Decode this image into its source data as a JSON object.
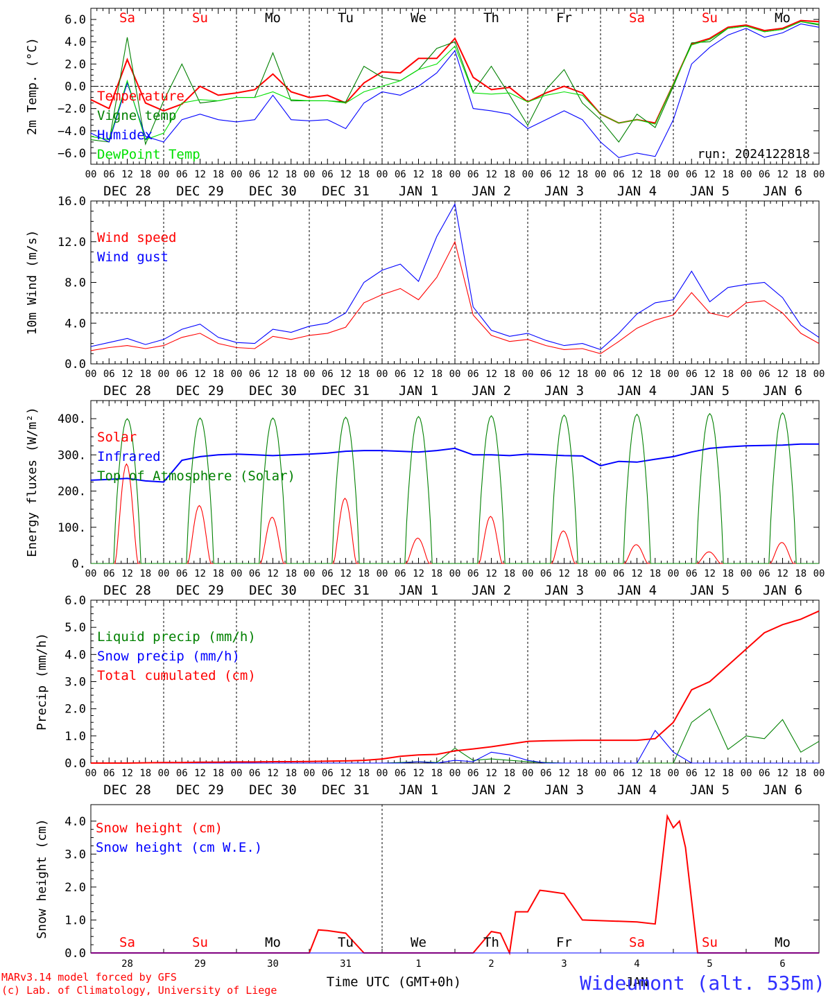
{
  "footer": {
    "model": "MARv3.14 model forced by GFS",
    "lab": "(c) Lab. of Climatology, University of Liege",
    "station": "Wideumont (alt. 535m)",
    "xlabel": "Time UTC (GMT+0h)"
  },
  "run_label": "run: 2024122818",
  "day_names": [
    "Sa",
    "Su",
    "Mo",
    "Tu",
    "We",
    "Th",
    "Fr",
    "Sa",
    "Su",
    "Mo"
  ],
  "weekend_flags": [
    true,
    true,
    false,
    false,
    false,
    false,
    false,
    true,
    true,
    false
  ],
  "date_labels": [
    "DEC 28",
    "DEC 29",
    "DEC 30",
    "DEC 31",
    "JAN  1",
    "JAN  2",
    "JAN  3",
    "JAN  4",
    "JAN  5",
    "JAN  6"
  ],
  "hour_ticks": [
    "00",
    "06",
    "12",
    "18"
  ],
  "last_tick": "00",
  "bottom_day_numbers": [
    "28",
    "29",
    "30",
    "31",
    "1",
    "2",
    "3",
    "4",
    "5",
    "6"
  ],
  "bottom_month": "JAN",
  "colors": {
    "red": "#ff0000",
    "green": "#008000",
    "blue": "#0000ff",
    "lightgreen": "#00e000",
    "station": "#3030ff"
  },
  "chart_data": [
    {
      "type": "line",
      "ylabel": "2m Temp. (°C)",
      "ylim": [
        -7,
        7
      ],
      "yticks": [
        "6.0",
        "4.0",
        "2.0",
        "0.0",
        "−2.0",
        "−4.0",
        "−6.0"
      ],
      "ytick_values": [
        6,
        4,
        2,
        0,
        -2,
        -4,
        -6
      ],
      "ref_line": 0,
      "x_hours": [
        0,
        6,
        12,
        18,
        24,
        30,
        36,
        42,
        48,
        54,
        60,
        66,
        72,
        78,
        84,
        90,
        96,
        102,
        108,
        114,
        120,
        126,
        132,
        138,
        144,
        150,
        156,
        162,
        168,
        174,
        180,
        186,
        192,
        198,
        204,
        210,
        216,
        222,
        228,
        234,
        240
      ],
      "series": [
        {
          "name": "Temperature",
          "color": "#ff0000",
          "values": [
            -1.2,
            -2.0,
            2.4,
            -1.5,
            -2.2,
            -1.6,
            0.0,
            -0.8,
            -0.6,
            -0.3,
            1.1,
            -0.5,
            -1.0,
            -0.8,
            -1.5,
            0.3,
            1.3,
            1.2,
            2.5,
            2.5,
            4.3,
            0.8,
            -0.3,
            -0.1,
            -1.4,
            -0.6,
            0.0,
            -0.6,
            -2.5,
            -3.3,
            -3.0,
            -3.3,
            0.2,
            3.8,
            4.3,
            5.3,
            5.5,
            5.0,
            5.2,
            5.9,
            5.8
          ]
        },
        {
          "name": "Vigne temp",
          "color": "#008000",
          "values": [
            -4.8,
            -5.0,
            4.4,
            -5.2,
            -1.3,
            2.0,
            -1.5,
            -1.3,
            -1.0,
            -1.0,
            3.0,
            -1.3,
            -1.3,
            -1.3,
            -1.4,
            1.8,
            0.8,
            0.5,
            1.5,
            3.4,
            4.0,
            -0.5,
            1.8,
            -0.8,
            -3.5,
            -0.3,
            1.5,
            -1.5,
            -3.0,
            -5.0,
            -2.5,
            -3.7,
            0.0,
            3.9,
            4.0,
            5.2,
            5.4,
            4.9,
            5.1,
            5.8,
            5.5
          ]
        },
        {
          "name": "Humidex",
          "color": "#0000ff",
          "values": [
            -4.2,
            -5.0,
            0.3,
            -4.5,
            -5.0,
            -3.0,
            -2.5,
            -3.0,
            -3.2,
            -3.0,
            -0.8,
            -3.0,
            -3.1,
            -3.0,
            -3.8,
            -1.5,
            -0.5,
            -0.8,
            0.0,
            1.2,
            3.2,
            -2.0,
            -2.2,
            -2.5,
            -3.8,
            -3.0,
            -2.2,
            -3.0,
            -5.0,
            -6.4,
            -6.0,
            -6.3,
            -3.0,
            2.0,
            3.5,
            4.6,
            5.2,
            4.4,
            4.8,
            5.6,
            5.3
          ]
        },
        {
          "name": "DewPoint Temp",
          "color": "#00e000",
          "values": [
            -4.5,
            -4.8,
            0.5,
            -4.8,
            -4.2,
            -1.5,
            -1.2,
            -1.3,
            -1.0,
            -1.0,
            -0.5,
            -1.2,
            -1.3,
            -1.3,
            -1.5,
            -0.5,
            0.0,
            0.5,
            1.5,
            2.0,
            3.6,
            -0.6,
            -0.7,
            -0.6,
            -1.4,
            -0.8,
            -0.5,
            -0.8,
            -2.5,
            -3.3,
            -3.0,
            -3.4,
            0.2,
            3.7,
            4.2,
            5.2,
            5.4,
            4.9,
            5.1,
            5.8,
            5.6
          ]
        }
      ]
    },
    {
      "type": "line",
      "ylabel": "10m Wind (m/s)",
      "ylim": [
        0,
        16
      ],
      "yticks": [
        "16.0",
        "12.0",
        "8.0",
        "4.0",
        "0.0"
      ],
      "ytick_values": [
        16,
        12,
        8,
        4,
        0
      ],
      "ref_line": 5,
      "x_hours": [
        0,
        6,
        12,
        18,
        24,
        30,
        36,
        42,
        48,
        54,
        60,
        66,
        72,
        78,
        84,
        90,
        96,
        102,
        108,
        114,
        120,
        126,
        132,
        138,
        144,
        150,
        156,
        162,
        168,
        174,
        180,
        186,
        192,
        198,
        204,
        210,
        216,
        222,
        228,
        234,
        240
      ],
      "series": [
        {
          "name": "Wind speed",
          "color": "#ff0000",
          "values": [
            1.3,
            1.6,
            1.8,
            1.5,
            1.8,
            2.6,
            3.0,
            2.0,
            1.6,
            1.5,
            2.7,
            2.4,
            2.8,
            3.0,
            3.6,
            6.0,
            6.8,
            7.4,
            6.3,
            8.5,
            12.0,
            4.8,
            2.8,
            2.2,
            2.4,
            1.8,
            1.4,
            1.5,
            1.0,
            2.2,
            3.5,
            4.3,
            4.8,
            7.0,
            5.0,
            4.6,
            6.0,
            6.2,
            5.0,
            3.0,
            2.0
          ]
        },
        {
          "name": "Wind gust",
          "color": "#0000ff",
          "values": [
            1.7,
            2.1,
            2.5,
            1.9,
            2.4,
            3.4,
            3.9,
            2.6,
            2.1,
            2.0,
            3.4,
            3.1,
            3.7,
            4.0,
            5.0,
            8.0,
            9.2,
            9.8,
            8.1,
            12.5,
            15.7,
            5.6,
            3.3,
            2.7,
            3.0,
            2.3,
            1.8,
            2.0,
            1.4,
            3.0,
            4.9,
            6.0,
            6.3,
            9.1,
            6.1,
            7.5,
            7.8,
            8.0,
            6.5,
            3.8,
            2.6
          ]
        }
      ]
    },
    {
      "type": "line",
      "ylabel": "Energy fluxes (W/m²)",
      "ylim": [
        0,
        450
      ],
      "yticks": [
        "400.",
        "300.",
        "200.",
        "100.",
        "0."
      ],
      "ytick_values": [
        400,
        300,
        200,
        100,
        0
      ],
      "x_hours": [
        0,
        6,
        12,
        18,
        24,
        30,
        36,
        42,
        48,
        54,
        60,
        66,
        72,
        78,
        84,
        90,
        96,
        102,
        108,
        114,
        120,
        126,
        132,
        138,
        144,
        150,
        156,
        162,
        168,
        174,
        180,
        186,
        192,
        198,
        204,
        210,
        216,
        222,
        228,
        234,
        240
      ],
      "series": [
        {
          "name": "Solar",
          "color": "#ff0000",
          "peaks": [
            275,
            160,
            128,
            180,
            70,
            130,
            90,
            52,
            32,
            58
          ]
        },
        {
          "name": "Infrared",
          "color": "#0000ff",
          "values": [
            230,
            232,
            235,
            228,
            225,
            285,
            295,
            300,
            302,
            300,
            298,
            300,
            302,
            305,
            310,
            312,
            312,
            310,
            308,
            312,
            318,
            300,
            300,
            298,
            302,
            300,
            298,
            297,
            270,
            282,
            280,
            288,
            295,
            308,
            318,
            322,
            325,
            326,
            327,
            330,
            330
          ]
        },
        {
          "name": "Top of Atmosphere (Solar)",
          "color": "#008000",
          "peaks": [
            400,
            402,
            402,
            404,
            406,
            408,
            410,
            412,
            414,
            416
          ]
        }
      ]
    },
    {
      "type": "line",
      "ylabel": "Precip (mm/h)",
      "ylim": [
        0,
        6
      ],
      "yticks": [
        "6.0",
        "5.0",
        "4.0",
        "3.0",
        "2.0",
        "1.0",
        "0.0"
      ],
      "ytick_values": [
        6,
        5,
        4,
        3,
        2,
        1,
        0
      ],
      "x_hours": [
        0,
        6,
        12,
        18,
        24,
        30,
        36,
        42,
        48,
        54,
        60,
        66,
        72,
        78,
        84,
        90,
        96,
        102,
        108,
        114,
        120,
        126,
        132,
        138,
        144,
        150,
        156,
        162,
        168,
        174,
        180,
        186,
        192,
        198,
        204,
        210,
        216,
        222,
        228,
        234,
        240
      ],
      "series": [
        {
          "name": "Liquid precip (mm/h)",
          "color": "#008000",
          "values": [
            0,
            0,
            0,
            0,
            0,
            0,
            0,
            0,
            0,
            0,
            0,
            0,
            0,
            0,
            0,
            0,
            0,
            0.02,
            0.05,
            0.02,
            0.55,
            0.1,
            0.15,
            0.1,
            0.05,
            0.02,
            0,
            0,
            0,
            0,
            0,
            0,
            0,
            1.5,
            2.0,
            0.5,
            1.0,
            0.9,
            1.6,
            0.4,
            0.8
          ]
        },
        {
          "name": "Snow precip (mm/h)",
          "color": "#0000ff",
          "values": [
            0,
            0,
            0,
            0,
            0,
            0,
            0,
            0,
            0,
            0,
            0,
            0,
            0,
            0,
            0,
            0,
            0,
            0,
            0.05,
            0,
            0.1,
            0.05,
            0.4,
            0.3,
            0.1,
            0,
            0,
            0,
            0,
            0,
            0,
            1.2,
            0.4,
            0,
            0,
            0,
            0,
            0,
            0,
            0,
            0
          ]
        },
        {
          "name": "Total cumulated (cm)",
          "color": "#ff0000",
          "values": [
            0,
            0,
            0,
            0.01,
            0.02,
            0.02,
            0.03,
            0.03,
            0.04,
            0.04,
            0.05,
            0.05,
            0.06,
            0.07,
            0.08,
            0.1,
            0.15,
            0.25,
            0.3,
            0.32,
            0.45,
            0.52,
            0.6,
            0.7,
            0.8,
            0.82,
            0.83,
            0.84,
            0.84,
            0.84,
            0.84,
            0.9,
            1.5,
            2.7,
            3.0,
            3.6,
            4.2,
            4.8,
            5.1,
            5.3,
            5.6
          ]
        }
      ]
    },
    {
      "type": "line",
      "ylabel": "Snow height (cm)",
      "ylim": [
        0,
        4.5
      ],
      "yticks": [
        "4.0",
        "3.0",
        "2.0",
        "1.0",
        "0.0"
      ],
      "ytick_values": [
        4,
        3,
        2,
        1,
        0
      ],
      "x_hours": [
        0,
        6,
        12,
        18,
        24,
        30,
        36,
        42,
        48,
        54,
        60,
        66,
        72,
        75,
        78,
        84,
        90,
        96,
        102,
        108,
        114,
        120,
        126,
        132,
        135,
        138,
        140,
        144,
        148,
        150,
        156,
        162,
        168,
        174,
        180,
        186,
        188,
        190,
        192,
        194,
        196,
        200,
        204,
        210,
        216,
        222,
        228,
        234,
        240
      ],
      "series": [
        {
          "name": "Snow height (cm)",
          "color": "#ff0000",
          "values": [
            0,
            0,
            0,
            0,
            0,
            0,
            0,
            0,
            0,
            0,
            0,
            0,
            0,
            0.7,
            0.68,
            0.6,
            0,
            0,
            0,
            0,
            0,
            0,
            0,
            0.65,
            0.6,
            0,
            1.25,
            1.25,
            1.9,
            1.88,
            1.8,
            1.0,
            0.98,
            0.96,
            0.94,
            0.88,
            2.5,
            4.15,
            3.8,
            4.0,
            3.2,
            0,
            0,
            0,
            0,
            0,
            0,
            0,
            0
          ]
        },
        {
          "name": "Snow height (cm W.E.)",
          "color": "#0000ff",
          "values": [
            0,
            0,
            0,
            0,
            0,
            0,
            0,
            0,
            0,
            0,
            0,
            0,
            0,
            0,
            0,
            0,
            0,
            0,
            0,
            0,
            0,
            0,
            0,
            0,
            0,
            0,
            0,
            0,
            0,
            0,
            0,
            0,
            0,
            0,
            0,
            0,
            0,
            0,
            0,
            0,
            0,
            0,
            0,
            0,
            0,
            0,
            0,
            0,
            0
          ]
        }
      ]
    }
  ]
}
